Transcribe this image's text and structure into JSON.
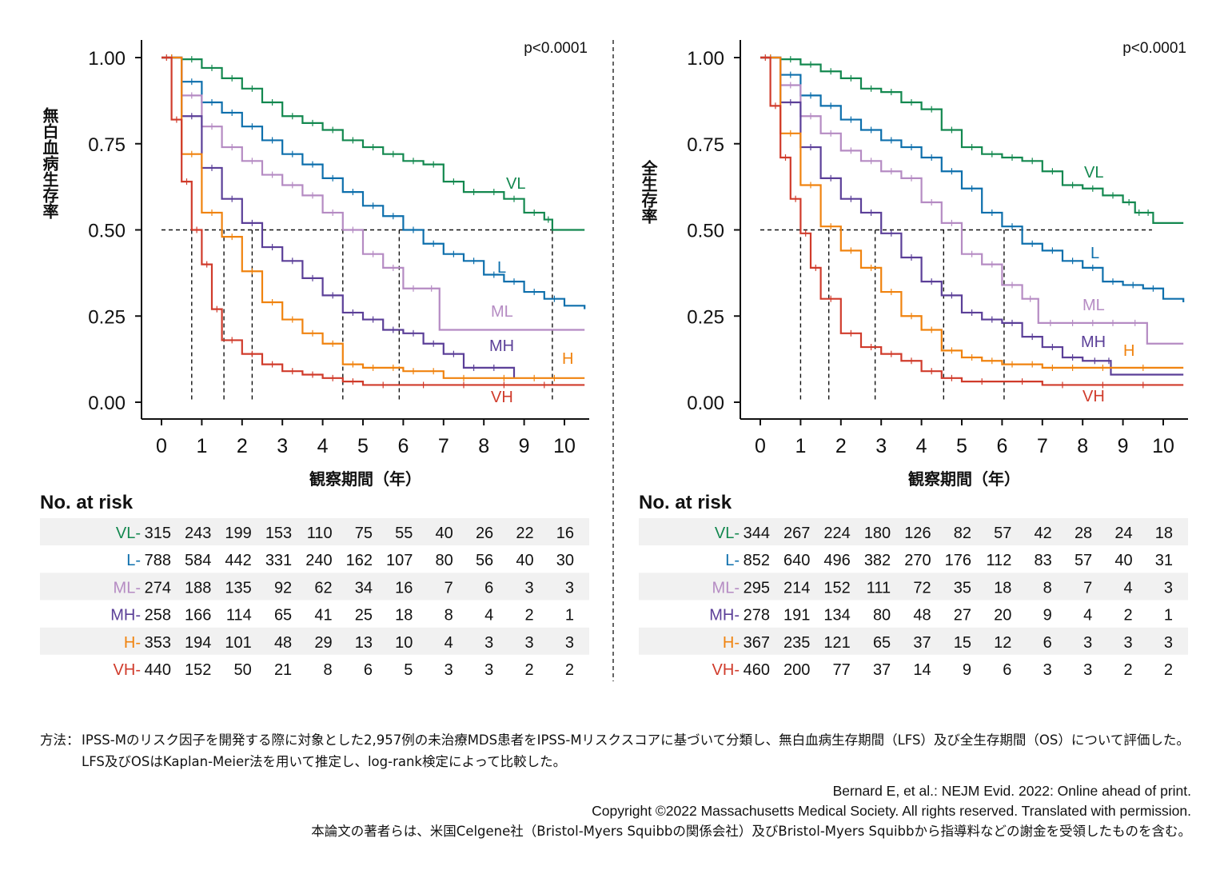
{
  "panels": [
    {
      "ylabel": "無白血病生存率",
      "xlabel": "観察期間（年）",
      "pvalue": "p<0.0001",
      "risk_title": "No. at risk",
      "median_years": [
        0.75,
        1.55,
        2.25,
        4.5,
        5.9,
        9.7
      ]
    },
    {
      "ylabel": "全生存率",
      "xlabel": "観察期間（年）",
      "pvalue": "p<0.0001",
      "risk_title": "No. at risk",
      "median_years": [
        1.0,
        1.7,
        2.85,
        4.55,
        6.05
      ]
    }
  ],
  "chart_data": [
    {
      "type": "line",
      "title": "",
      "xlabel": "観察期間（年）",
      "ylabel": "無白血病生存率",
      "xlim": [
        0,
        10.5
      ],
      "ylim": [
        0,
        1
      ],
      "xticks": [
        0,
        1,
        2,
        3,
        4,
        5,
        6,
        7,
        8,
        9,
        10
      ],
      "yticks": [
        "0.00",
        "0.25",
        "0.50",
        "0.75",
        "1.00"
      ],
      "reference_line_y": 0.5,
      "annotation": "p<0.0001",
      "series": [
        {
          "name": "VL",
          "color": "#13884f",
          "x": [
            0,
            0.5,
            1,
            1.5,
            2,
            2.5,
            3,
            3.5,
            4,
            4.5,
            5,
            5.5,
            6,
            6.5,
            7,
            7.5,
            8,
            8.5,
            9,
            9.5,
            9.7,
            10.5
          ],
          "y": [
            1,
            0.995,
            0.97,
            0.94,
            0.91,
            0.87,
            0.83,
            0.81,
            0.79,
            0.76,
            0.74,
            0.72,
            0.7,
            0.69,
            0.64,
            0.61,
            0.61,
            0.59,
            0.55,
            0.53,
            0.5,
            0.5
          ]
        },
        {
          "name": "L",
          "color": "#0d6fac",
          "x": [
            0,
            0.5,
            1,
            1.5,
            2,
            2.5,
            3,
            3.5,
            4,
            4.5,
            5,
            5.5,
            6,
            6.5,
            7,
            7.5,
            8,
            8.5,
            9,
            9.5,
            10,
            10.5
          ],
          "y": [
            1,
            0.93,
            0.87,
            0.84,
            0.8,
            0.76,
            0.72,
            0.69,
            0.65,
            0.61,
            0.57,
            0.54,
            0.5,
            0.46,
            0.43,
            0.41,
            0.37,
            0.35,
            0.32,
            0.3,
            0.28,
            0.27
          ]
        },
        {
          "name": "ML",
          "color": "#b58bc3",
          "x": [
            0,
            0.5,
            1,
            1.5,
            2,
            2.5,
            3,
            3.5,
            4,
            4.5,
            5,
            5.5,
            6,
            6.5,
            6.9,
            10.5
          ],
          "y": [
            1,
            0.89,
            0.8,
            0.74,
            0.7,
            0.66,
            0.63,
            0.6,
            0.55,
            0.5,
            0.43,
            0.39,
            0.33,
            0.33,
            0.21,
            0.21
          ]
        },
        {
          "name": "MH",
          "color": "#5b3f98",
          "x": [
            0,
            0.5,
            1,
            1.5,
            2,
            2.5,
            3,
            3.5,
            4,
            4.5,
            5,
            5.5,
            6,
            6.5,
            7,
            7.5,
            8,
            8.5,
            8.75
          ],
          "y": [
            1,
            0.83,
            0.68,
            0.59,
            0.52,
            0.45,
            0.41,
            0.36,
            0.31,
            0.26,
            0.24,
            0.21,
            0.2,
            0.17,
            0.14,
            0.1,
            0.1,
            0.1,
            0.07
          ]
        },
        {
          "name": "H",
          "color": "#f0830f",
          "x": [
            0,
            0.5,
            1,
            1.5,
            2,
            2.5,
            3,
            3.5,
            4,
            4.5,
            5,
            5.5,
            6,
            6.5,
            7,
            8,
            9,
            9.5,
            10,
            10.5
          ],
          "y": [
            1,
            0.72,
            0.55,
            0.48,
            0.38,
            0.29,
            0.24,
            0.2,
            0.17,
            0.11,
            0.1,
            0.1,
            0.09,
            0.09,
            0.07,
            0.07,
            0.07,
            0.07,
            0.07,
            0.07
          ]
        },
        {
          "name": "VH",
          "color": "#d03b2b",
          "x": [
            0,
            0.25,
            0.5,
            0.75,
            1,
            1.25,
            1.5,
            2,
            2.5,
            3,
            3.5,
            4,
            4.5,
            5,
            6,
            7,
            8,
            9,
            10,
            10.5
          ],
          "y": [
            1,
            0.82,
            0.64,
            0.5,
            0.4,
            0.27,
            0.18,
            0.14,
            0.11,
            0.09,
            0.08,
            0.07,
            0.06,
            0.05,
            0.05,
            0.05,
            0.05,
            0.05,
            0.05,
            0.05
          ]
        }
      ],
      "no_at_risk": {
        "x": [
          0,
          1,
          2,
          3,
          4,
          5,
          6,
          7,
          8,
          9,
          10
        ],
        "rows": [
          {
            "name": "VL",
            "values": [
              315,
              243,
              199,
              153,
              110,
              75,
              55,
              40,
              26,
              22,
              16
            ]
          },
          {
            "name": "L",
            "values": [
              788,
              584,
              442,
              331,
              240,
              162,
              107,
              80,
              56,
              40,
              30
            ]
          },
          {
            "name": "ML",
            "values": [
              274,
              188,
              135,
              92,
              62,
              34,
              16,
              7,
              6,
              3,
              3
            ]
          },
          {
            "name": "MH",
            "values": [
              258,
              166,
              114,
              65,
              41,
              25,
              18,
              8,
              4,
              2,
              1
            ]
          },
          {
            "name": "H",
            "values": [
              353,
              194,
              101,
              48,
              29,
              13,
              10,
              4,
              3,
              3,
              3
            ]
          },
          {
            "name": "VH",
            "values": [
              440,
              152,
              50,
              21,
              8,
              6,
              5,
              3,
              3,
              2,
              2
            ]
          }
        ]
      }
    },
    {
      "type": "line",
      "title": "",
      "xlabel": "観察期間（年）",
      "ylabel": "全生存率",
      "xlim": [
        0,
        10.5
      ],
      "ylim": [
        0,
        1
      ],
      "xticks": [
        0,
        1,
        2,
        3,
        4,
        5,
        6,
        7,
        8,
        9,
        10
      ],
      "yticks": [
        "0.00",
        "0.25",
        "0.50",
        "0.75",
        "1.00"
      ],
      "reference_line_y": 0.5,
      "annotation": "p<0.0001",
      "series": [
        {
          "name": "VL",
          "color": "#13884f",
          "x": [
            0,
            0.5,
            1,
            1.5,
            2,
            2.5,
            3,
            3.5,
            4,
            4.5,
            5,
            5.5,
            6,
            6.5,
            7,
            7.5,
            8,
            8.5,
            9,
            9.3,
            9.5,
            9.75,
            10.5
          ],
          "y": [
            1,
            0.995,
            0.98,
            0.96,
            0.94,
            0.91,
            0.9,
            0.87,
            0.85,
            0.79,
            0.74,
            0.72,
            0.71,
            0.7,
            0.67,
            0.63,
            0.62,
            0.6,
            0.58,
            0.55,
            0.55,
            0.52,
            0.52
          ]
        },
        {
          "name": "L",
          "color": "#0d6fac",
          "x": [
            0,
            0.5,
            1,
            1.5,
            2,
            2.5,
            3,
            3.5,
            4,
            4.5,
            5,
            5.5,
            6,
            6.5,
            7,
            7.5,
            8,
            8.5,
            9,
            9.5,
            10,
            10.5
          ],
          "y": [
            1,
            0.95,
            0.89,
            0.86,
            0.82,
            0.79,
            0.76,
            0.74,
            0.71,
            0.67,
            0.62,
            0.55,
            0.51,
            0.46,
            0.44,
            0.41,
            0.39,
            0.35,
            0.34,
            0.33,
            0.3,
            0.29
          ]
        },
        {
          "name": "ML",
          "color": "#b58bc3",
          "x": [
            0,
            0.5,
            1,
            1.5,
            2,
            2.5,
            3,
            3.5,
            4,
            4.5,
            5,
            5.5,
            6,
            6.5,
            6.9,
            7.5,
            8,
            8.5,
            9,
            9.6,
            10.5
          ],
          "y": [
            1,
            0.92,
            0.83,
            0.78,
            0.73,
            0.7,
            0.67,
            0.65,
            0.58,
            0.52,
            0.43,
            0.4,
            0.34,
            0.3,
            0.23,
            0.23,
            0.23,
            0.23,
            0.23,
            0.17,
            0.17
          ]
        },
        {
          "name": "MH",
          "color": "#5b3f98",
          "x": [
            0,
            0.5,
            1,
            1.5,
            2,
            2.5,
            3,
            3.5,
            4,
            4.5,
            5,
            5.5,
            6,
            6.5,
            7,
            7.5,
            8,
            8.6,
            8.7,
            10.5
          ],
          "y": [
            1,
            0.87,
            0.74,
            0.65,
            0.59,
            0.55,
            0.49,
            0.42,
            0.35,
            0.31,
            0.26,
            0.24,
            0.23,
            0.19,
            0.16,
            0.13,
            0.12,
            0.12,
            0.08,
            0.08
          ]
        },
        {
          "name": "H",
          "color": "#f0830f",
          "x": [
            0,
            0.5,
            1,
            1.5,
            2,
            2.5,
            3,
            3.5,
            4,
            4.5,
            5,
            5.5,
            6,
            6.5,
            7,
            7.5,
            8,
            9,
            10,
            10.5
          ],
          "y": [
            1,
            0.78,
            0.63,
            0.51,
            0.44,
            0.39,
            0.32,
            0.25,
            0.21,
            0.15,
            0.13,
            0.12,
            0.11,
            0.11,
            0.1,
            0.1,
            0.1,
            0.1,
            0.1,
            0.1
          ]
        },
        {
          "name": "VH",
          "color": "#d03b2b",
          "x": [
            0,
            0.25,
            0.5,
            0.75,
            1,
            1.25,
            1.5,
            2,
            2.5,
            3,
            3.5,
            4,
            4.5,
            5,
            6,
            7,
            8,
            9,
            10,
            10.5
          ],
          "y": [
            1,
            0.86,
            0.71,
            0.59,
            0.49,
            0.39,
            0.3,
            0.2,
            0.16,
            0.14,
            0.12,
            0.09,
            0.07,
            0.06,
            0.06,
            0.05,
            0.05,
            0.05,
            0.05,
            0.05
          ]
        }
      ],
      "no_at_risk": {
        "x": [
          0,
          1,
          2,
          3,
          4,
          5,
          6,
          7,
          8,
          9,
          10
        ],
        "rows": [
          {
            "name": "VL",
            "values": [
              344,
              267,
              224,
              180,
              126,
              82,
              57,
              42,
              28,
              24,
              18
            ]
          },
          {
            "name": "L",
            "values": [
              852,
              640,
              496,
              382,
              270,
              176,
              112,
              83,
              57,
              40,
              31
            ]
          },
          {
            "name": "ML",
            "values": [
              295,
              214,
              152,
              111,
              72,
              35,
              18,
              8,
              7,
              4,
              3
            ]
          },
          {
            "name": "MH",
            "values": [
              278,
              191,
              134,
              80,
              48,
              27,
              20,
              9,
              4,
              2,
              1
            ]
          },
          {
            "name": "H",
            "values": [
              367,
              235,
              121,
              65,
              37,
              15,
              12,
              6,
              3,
              3,
              3
            ]
          },
          {
            "name": "VH",
            "values": [
              460,
              200,
              77,
              37,
              14,
              9,
              6,
              3,
              3,
              2,
              2
            ]
          }
        ]
      }
    }
  ],
  "footer": {
    "method_label": "方法：",
    "method_text": "IPSS-Mのリスク因子を開発する際に対象とした2,957例の未治療MDS患者をIPSS-Mリスクスコアに基づいて分類し、無白血病生存期間（LFS）及び全生存期間（OS）について評価した。LFS及びOSはKaplan-Meier法を用いて推定し、log-rank検定によって比較した。",
    "citation": "Bernard E, et al.: NEJM Evid. 2022: Online ahead of print.",
    "copyright": "Copyright ©2022 Massachusetts Medical Society. All rights reserved. Translated with permission.",
    "disclosure": "本論文の著者らは、米国Celgene社（Bristol-Myers Squibbの関係会社）及びBristol-Myers Squibbから指導料などの謝金を受領したものを含む。"
  }
}
